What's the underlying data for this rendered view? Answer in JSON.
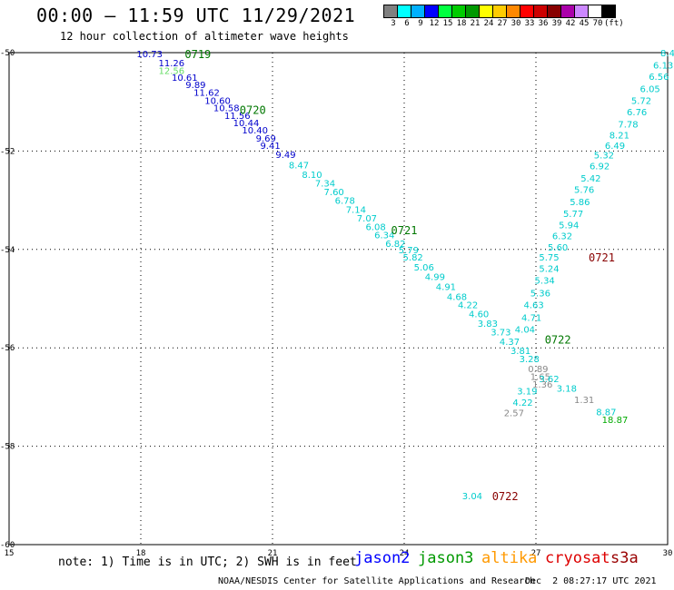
{
  "chart_data": {
    "type": "scatter",
    "title": "00:00 – 11:59 UTC 11/29/2021",
    "subtitle": "12 hour collection of altimeter wave heights",
    "xlim": [
      15,
      30
    ],
    "ylim": [
      -60,
      -50
    ],
    "x_ticks": [
      "15",
      "18",
      "21",
      "24",
      "27",
      "30"
    ],
    "y_ticks": [
      "-50",
      "-52",
      "-54",
      "-56",
      "-58",
      "-60"
    ],
    "grid": true,
    "colorbar": {
      "colors": [
        "#808080",
        "#00ffff",
        "#00b0ff",
        "#0000ff",
        "#00ff40",
        "#00cc00",
        "#009900",
        "#ffff00",
        "#ffcc00",
        "#ff8800",
        "#ff0000",
        "#cc0000",
        "#880000",
        "#aa00aa",
        "#cc88ff",
        "#ffffff",
        "#000000"
      ],
      "labels": [
        "3",
        "6",
        "9",
        "12",
        "15",
        "18",
        "21",
        "24",
        "27",
        "30",
        "33",
        "36",
        "39",
        "42",
        "45",
        "70",
        "(ft)"
      ]
    },
    "points": [
      {
        "x": 18.2,
        "y": -50.02,
        "label": "10.73",
        "color": "#0000cc"
      },
      {
        "x": 18.7,
        "y": -50.2,
        "label": "11.26",
        "color": "#0000cc"
      },
      {
        "x": 18.7,
        "y": -50.36,
        "label": "12.56",
        "color": "#66dd66"
      },
      {
        "x": 19.0,
        "y": -50.5,
        "label": "10.61",
        "color": "#0000cc"
      },
      {
        "x": 19.25,
        "y": -50.65,
        "label": "9.89",
        "color": "#0000cc"
      },
      {
        "x": 19.5,
        "y": -50.8,
        "label": "11.62",
        "color": "#0000cc"
      },
      {
        "x": 19.75,
        "y": -50.97,
        "label": "10.60",
        "color": "#0000cc"
      },
      {
        "x": 19.95,
        "y": -51.12,
        "label": "10.58",
        "color": "#0000cc"
      },
      {
        "x": 20.2,
        "y": -51.27,
        "label": "11.56",
        "color": "#0000cc"
      },
      {
        "x": 20.4,
        "y": -51.42,
        "label": "10.44",
        "color": "#0000cc"
      },
      {
        "x": 20.6,
        "y": -51.57,
        "label": "10.40",
        "color": "#0000cc"
      },
      {
        "x": 20.85,
        "y": -51.73,
        "label": "9.69",
        "color": "#0000cc"
      },
      {
        "x": 20.95,
        "y": -51.88,
        "label": "9.41",
        "color": "#0000cc"
      },
      {
        "x": 21.3,
        "y": -52.07,
        "label": "9.49",
        "color": "#0000cc"
      },
      {
        "x": 21.6,
        "y": -52.28,
        "label": "8.47",
        "color": "#00cccc"
      },
      {
        "x": 21.9,
        "y": -52.47,
        "label": "8.10",
        "color": "#00cccc"
      },
      {
        "x": 22.2,
        "y": -52.65,
        "label": "7.34",
        "color": "#00cccc"
      },
      {
        "x": 22.4,
        "y": -52.82,
        "label": "7.60",
        "color": "#00cccc"
      },
      {
        "x": 22.65,
        "y": -53.0,
        "label": "6.78",
        "color": "#00cccc"
      },
      {
        "x": 22.9,
        "y": -53.18,
        "label": "7.14",
        "color": "#00cccc"
      },
      {
        "x": 23.15,
        "y": -53.36,
        "label": "7.07",
        "color": "#00cccc"
      },
      {
        "x": 23.35,
        "y": -53.53,
        "label": "6.08",
        "color": "#00cccc"
      },
      {
        "x": 23.55,
        "y": -53.7,
        "label": "6.34",
        "color": "#00cccc"
      },
      {
        "x": 23.8,
        "y": -53.87,
        "label": "6.82",
        "color": "#00cccc"
      },
      {
        "x": 24.1,
        "y": -54.0,
        "label": "5.79",
        "color": "#00cccc"
      },
      {
        "x": 24.2,
        "y": -54.15,
        "label": "5.82",
        "color": "#00cccc"
      },
      {
        "x": 24.45,
        "y": -54.35,
        "label": "5.06",
        "color": "#00cccc"
      },
      {
        "x": 24.7,
        "y": -54.55,
        "label": "4.99",
        "color": "#00cccc"
      },
      {
        "x": 24.95,
        "y": -54.75,
        "label": "4.91",
        "color": "#00cccc"
      },
      {
        "x": 25.2,
        "y": -54.95,
        "label": "4.68",
        "color": "#00cccc"
      },
      {
        "x": 25.45,
        "y": -55.12,
        "label": "4.22",
        "color": "#00cccc"
      },
      {
        "x": 25.7,
        "y": -55.3,
        "label": "4.60",
        "color": "#00cccc"
      },
      {
        "x": 25.9,
        "y": -55.5,
        "label": "3.83",
        "color": "#00cccc"
      },
      {
        "x": 26.2,
        "y": -55.67,
        "label": "3.73",
        "color": "#00cccc"
      },
      {
        "x": 26.4,
        "y": -55.87,
        "label": "4.37",
        "color": "#00cccc"
      },
      {
        "x": 26.65,
        "y": -56.05,
        "label": "3.81",
        "color": "#00cccc"
      },
      {
        "x": 26.85,
        "y": -56.22,
        "label": "3.28",
        "color": "#00cccc"
      },
      {
        "x": 27.05,
        "y": -56.42,
        "label": "0.89",
        "color": "#888888"
      },
      {
        "x": 27.1,
        "y": -56.58,
        "label": "1.65",
        "color": "#888888"
      },
      {
        "x": 27.3,
        "y": -56.62,
        "label": "3.62",
        "color": "#00cccc"
      },
      {
        "x": 27.15,
        "y": -56.73,
        "label": "1.36",
        "color": "#888888"
      },
      {
        "x": 26.8,
        "y": -56.87,
        "label": "3.19",
        "color": "#00cccc"
      },
      {
        "x": 26.7,
        "y": -57.1,
        "label": "4.22",
        "color": "#00cccc"
      },
      {
        "x": 26.5,
        "y": -57.32,
        "label": "2.57",
        "color": "#888888"
      },
      {
        "x": 27.7,
        "y": -56.82,
        "label": "3.18",
        "color": "#00cccc"
      },
      {
        "x": 28.1,
        "y": -57.05,
        "label": "1.31",
        "color": "#888888"
      },
      {
        "x": 28.6,
        "y": -57.3,
        "label": "8.87",
        "color": "#00cccc"
      },
      {
        "x": 28.8,
        "y": -57.45,
        "label": "18.87",
        "color": "#00aa00"
      },
      {
        "x": 30.0,
        "y": -50.0,
        "label": "8.4",
        "color": "#00cccc"
      },
      {
        "x": 29.9,
        "y": -50.25,
        "label": "6.13",
        "color": "#00cccc"
      },
      {
        "x": 29.8,
        "y": -50.48,
        "label": "6.56",
        "color": "#00cccc"
      },
      {
        "x": 29.6,
        "y": -50.73,
        "label": "6.05",
        "color": "#00cccc"
      },
      {
        "x": 29.4,
        "y": -50.97,
        "label": "5.72",
        "color": "#00cccc"
      },
      {
        "x": 29.3,
        "y": -51.2,
        "label": "6.76",
        "color": "#00cccc"
      },
      {
        "x": 29.1,
        "y": -51.45,
        "label": "7.78",
        "color": "#00cccc"
      },
      {
        "x": 28.9,
        "y": -51.67,
        "label": "8.21",
        "color": "#00cccc"
      },
      {
        "x": 28.8,
        "y": -51.88,
        "label": "6.49",
        "color": "#00cccc"
      },
      {
        "x": 28.55,
        "y": -52.08,
        "label": "5.32",
        "color": "#00cccc"
      },
      {
        "x": 28.45,
        "y": -52.3,
        "label": "6.92",
        "color": "#00cccc"
      },
      {
        "x": 28.25,
        "y": -52.55,
        "label": "5.42",
        "color": "#00cccc"
      },
      {
        "x": 28.1,
        "y": -52.78,
        "label": "5.76",
        "color": "#00cccc"
      },
      {
        "x": 28.0,
        "y": -53.03,
        "label": "5.86",
        "color": "#00cccc"
      },
      {
        "x": 27.85,
        "y": -53.27,
        "label": "5.77",
        "color": "#00cccc"
      },
      {
        "x": 27.75,
        "y": -53.5,
        "label": "5.94",
        "color": "#00cccc"
      },
      {
        "x": 27.6,
        "y": -53.72,
        "label": "6.32",
        "color": "#00cccc"
      },
      {
        "x": 27.5,
        "y": -53.95,
        "label": "5.60",
        "color": "#00cccc"
      },
      {
        "x": 27.3,
        "y": -54.15,
        "label": "5.75",
        "color": "#00cccc"
      },
      {
        "x": 27.3,
        "y": -54.38,
        "label": "5.24",
        "color": "#00cccc"
      },
      {
        "x": 27.2,
        "y": -54.62,
        "label": "5.34",
        "color": "#00cccc"
      },
      {
        "x": 27.1,
        "y": -54.88,
        "label": "5.36",
        "color": "#00cccc"
      },
      {
        "x": 26.95,
        "y": -55.12,
        "label": "4.63",
        "color": "#00cccc"
      },
      {
        "x": 26.9,
        "y": -55.38,
        "label": "4.71",
        "color": "#00cccc"
      },
      {
        "x": 26.75,
        "y": -55.62,
        "label": "4.04",
        "color": "#00cccc"
      },
      {
        "x": 25.55,
        "y": -59.0,
        "label": "3.04",
        "color": "#00cccc"
      }
    ],
    "pass_labels": [
      {
        "x": 19.3,
        "y": -50.02,
        "label": "0719",
        "color": "#007700"
      },
      {
        "x": 20.55,
        "y": -51.15,
        "label": "0720",
        "color": "#007700"
      },
      {
        "x": 24.0,
        "y": -53.6,
        "label": "0721",
        "color": "#007700"
      },
      {
        "x": 28.5,
        "y": -54.15,
        "label": "0721",
        "color": "#880000"
      },
      {
        "x": 27.5,
        "y": -55.82,
        "label": "0722",
        "color": "#007700"
      },
      {
        "x": 26.3,
        "y": -59.0,
        "label": "0722",
        "color": "#880000"
      }
    ]
  },
  "footer": {
    "note": "note: 1) Time is in UTC; 2) SWH is in feet",
    "satellites": [
      {
        "name": "jason2",
        "color": "#0000ff"
      },
      {
        "name": "jason3",
        "color": "#009900"
      },
      {
        "name": "altika",
        "color": "#ff9900"
      },
      {
        "name": "cryosat",
        "color": "#dd0000"
      },
      {
        "name": "s3a",
        "color": "#990000"
      }
    ],
    "source": "NOAA/NESDIS Center for Satellite Applications and Research",
    "timestamp": "Dec  2 08:27:17 UTC 2021"
  }
}
